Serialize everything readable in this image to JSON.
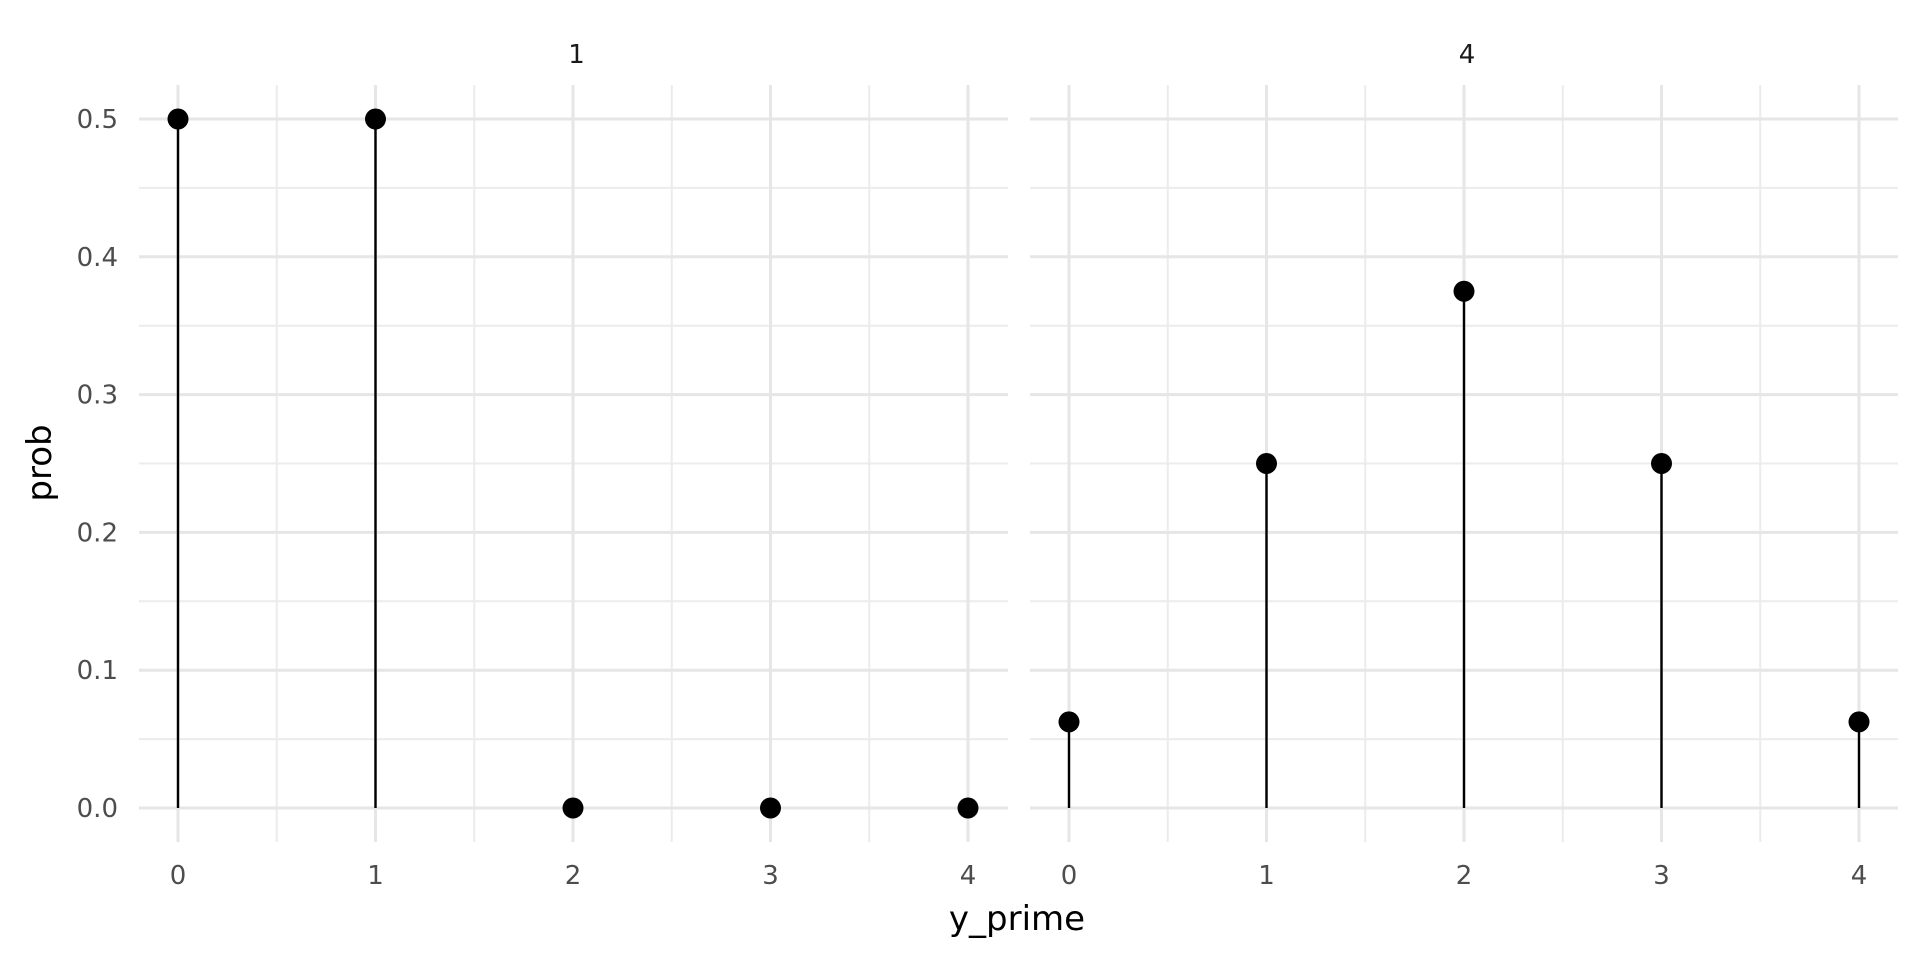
{
  "chart_data": {
    "type": "scatter",
    "geom": "lollipop",
    "xlabel": "y_prime",
    "ylabel": "prob",
    "x_ticks": [
      "0",
      "1",
      "2",
      "3",
      "4"
    ],
    "y_ticks": [
      "0.0",
      "0.1",
      "0.2",
      "0.3",
      "0.4",
      "0.5"
    ],
    "ylim": [
      0,
      0.5
    ],
    "xlim": [
      0,
      4
    ],
    "grid": true,
    "facets": [
      {
        "strip_label": "1",
        "x": [
          0,
          1,
          2,
          3,
          4
        ],
        "y": [
          0.5,
          0.5,
          0.0,
          0.0,
          0.0
        ]
      },
      {
        "strip_label": "4",
        "x": [
          0,
          1,
          2,
          3,
          4
        ],
        "y": [
          0.0625,
          0.25,
          0.375,
          0.25,
          0.0625
        ]
      }
    ]
  }
}
